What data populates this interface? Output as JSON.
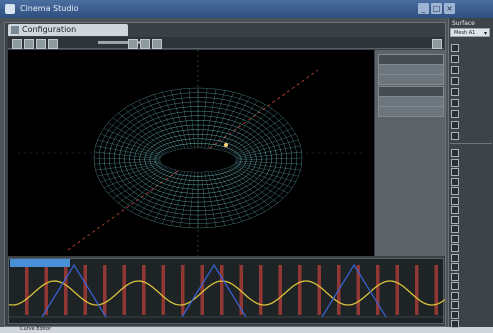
{
  "window": {
    "title": "Cinema Studio"
  },
  "main_tab": {
    "label": "Configuration"
  },
  "sidebar": {
    "title": "Surface",
    "select_value": "Mesh A1",
    "items_top": [
      "",
      "",
      "",
      "",
      "",
      "",
      "",
      "",
      ""
    ],
    "items_bottom": [
      "",
      "",
      "",
      "",
      "",
      "",
      "",
      "",
      "",
      "",
      "",
      "",
      "",
      "",
      "",
      "",
      "",
      "",
      ""
    ]
  },
  "timeline": {
    "tab_label": "",
    "y_tick": "",
    "x_ticks": [
      "",
      "",
      "",
      "",
      "",
      "",
      "",
      "",
      "",
      "",
      "",
      "",
      "",
      "",
      "",
      "",
      "",
      "",
      "",
      "",
      ""
    ]
  },
  "status": {
    "text": "Curve Editor"
  },
  "colors": {
    "mesh": "#7ed8e0",
    "axis_red": "#c84a3a",
    "curve_yellow": "#d8c23a",
    "curve_blue": "#3a62d8",
    "key_red": "#b8403a"
  }
}
